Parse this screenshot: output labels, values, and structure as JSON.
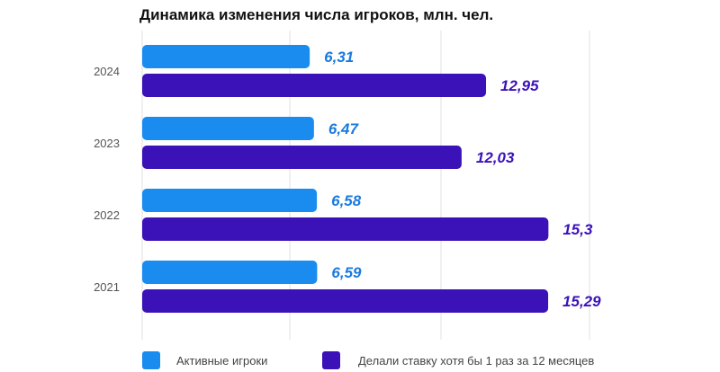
{
  "chart_data": {
    "type": "bar",
    "orientation": "horizontal",
    "title": "Динамика изменения числа игроков, млн. чел.",
    "categories": [
      "2024",
      "2023",
      "2022",
      "2021"
    ],
    "series": [
      {
        "name": "Активные игроки",
        "color": "#1a8cf0",
        "label_color": "#1a7ae0",
        "values": [
          6.31,
          6.47,
          6.58,
          6.59
        ],
        "value_labels": [
          "6,31",
          "6,47",
          "6,58",
          "6,59"
        ]
      },
      {
        "name": "Делали ставку хотя бы 1 раз за 12 месяцев",
        "color": "#3a12b8",
        "label_color": "#3a12b8",
        "values": [
          12.95,
          12.03,
          15.3,
          15.29
        ],
        "value_labels": [
          "12,95",
          "12,03",
          "15,3",
          "15,29"
        ]
      }
    ],
    "grid": true,
    "legend": "bottom-left"
  }
}
